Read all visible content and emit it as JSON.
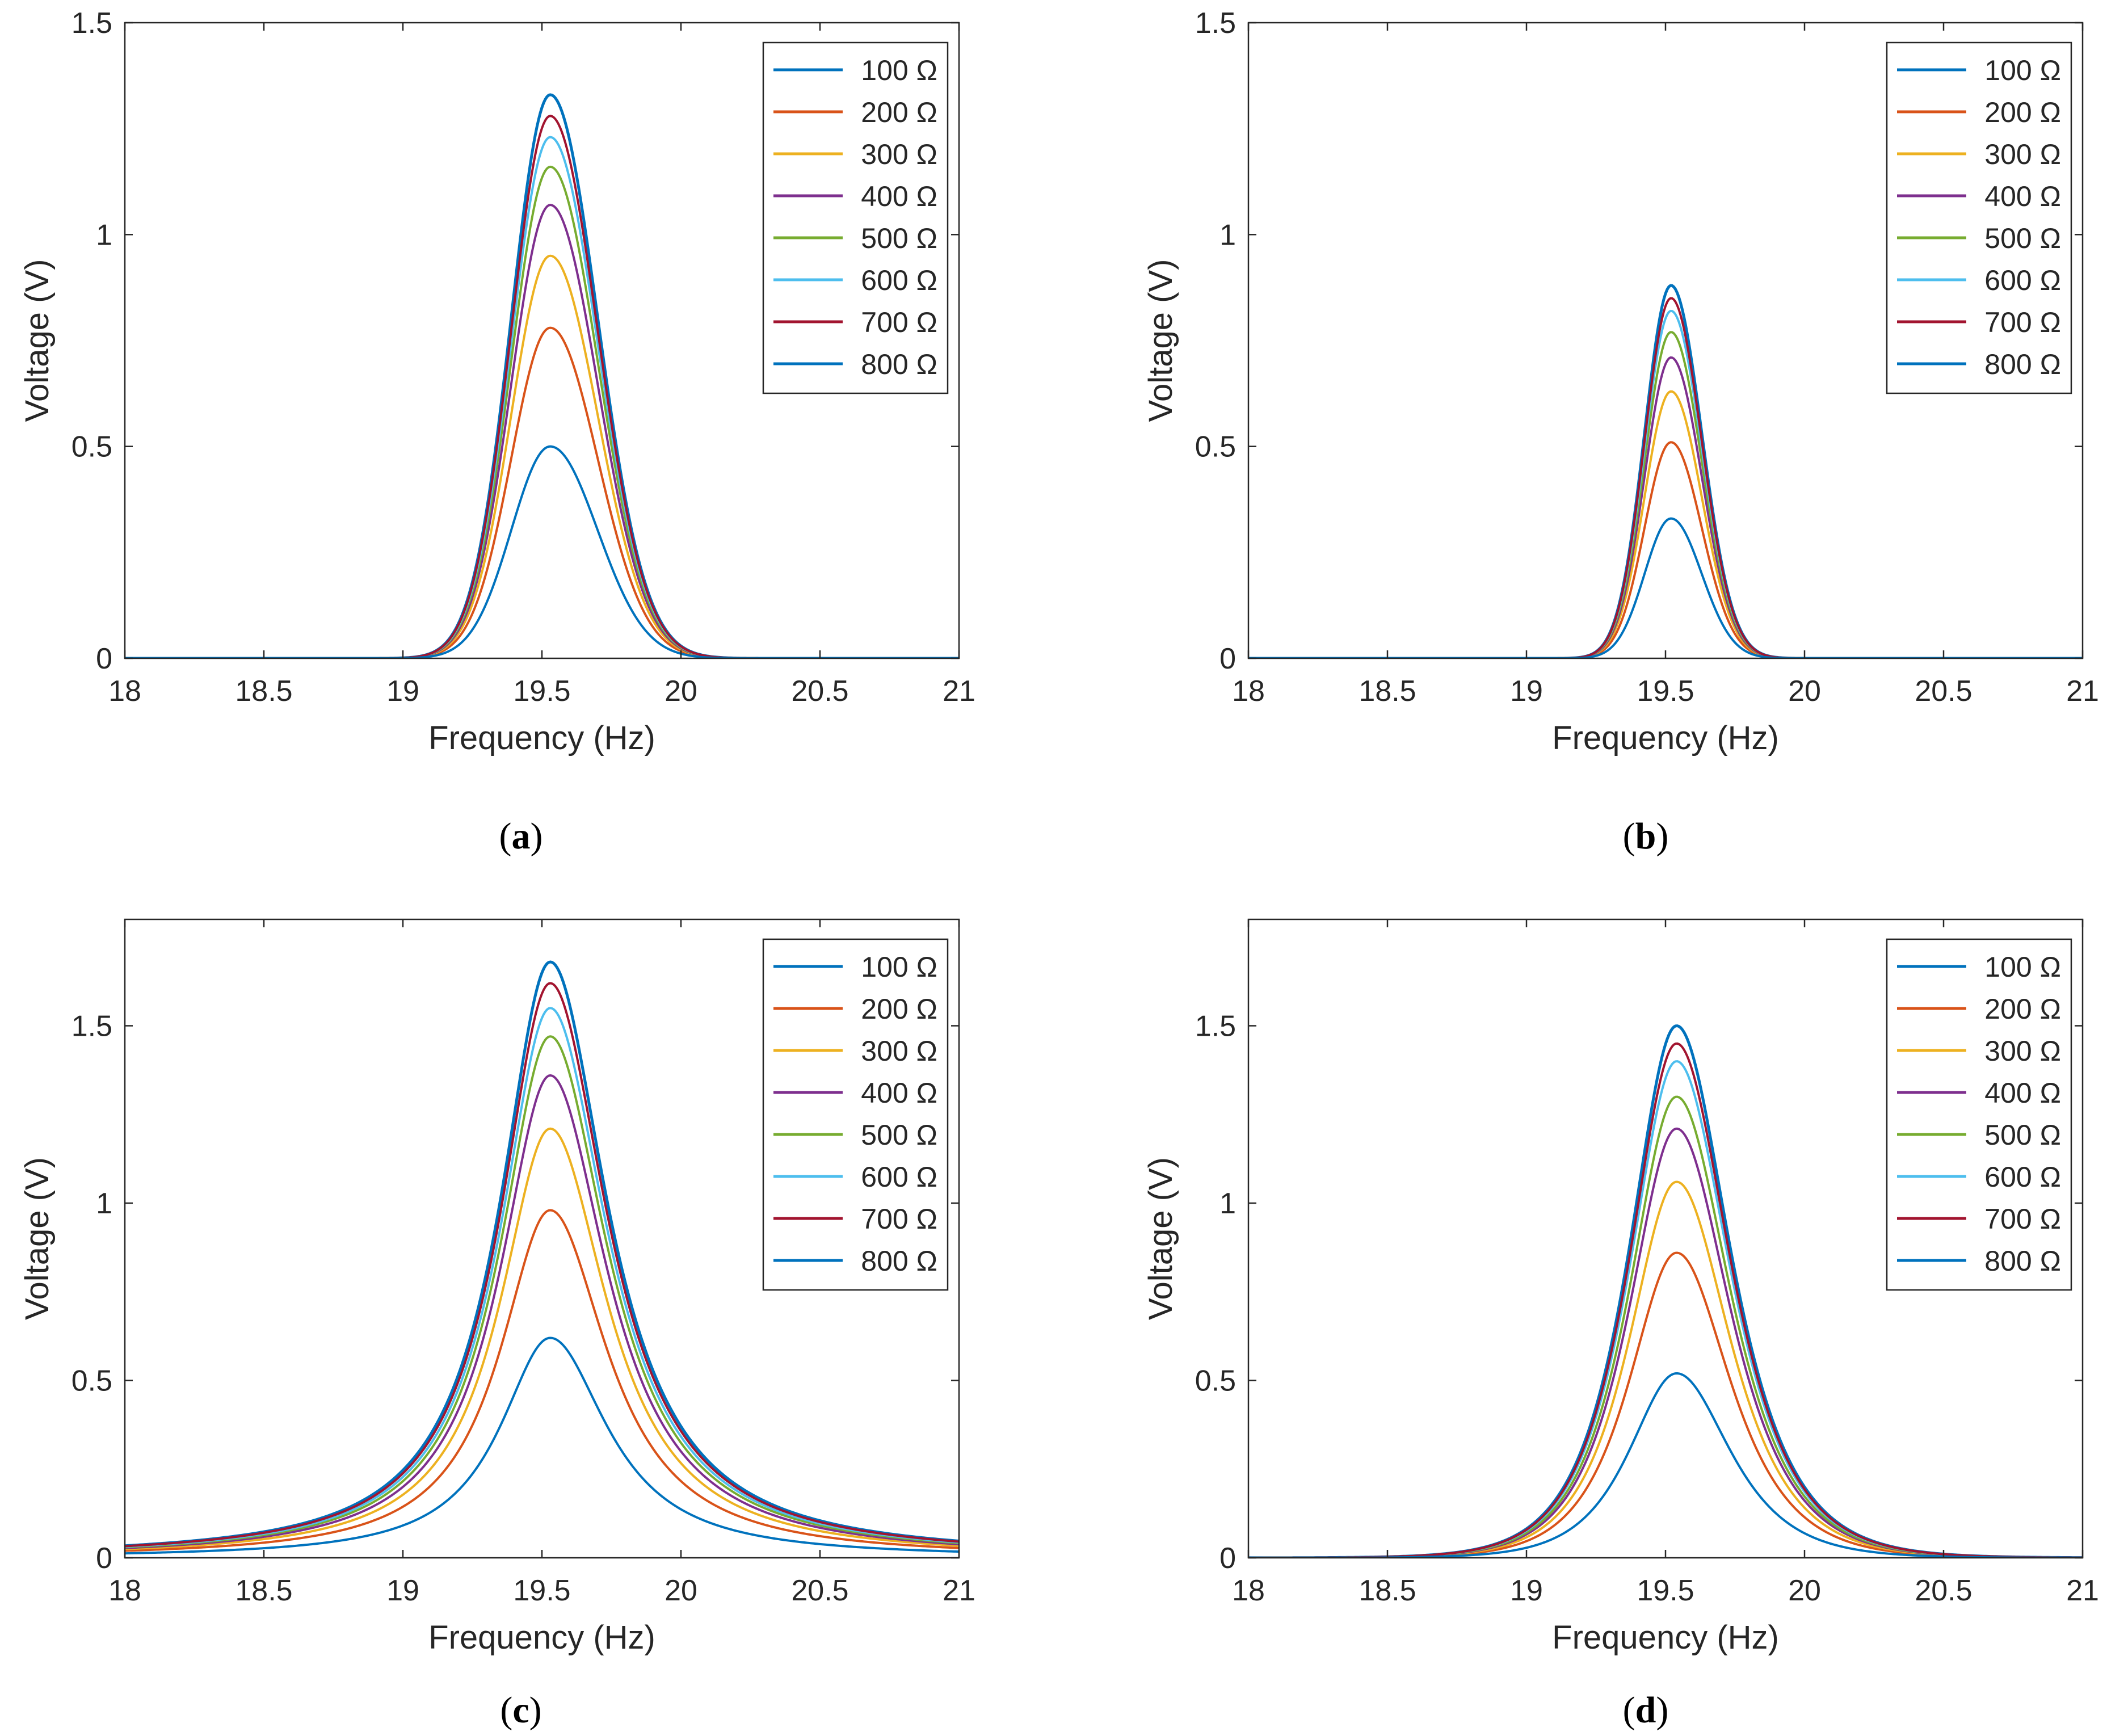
{
  "chart_data": [
    {
      "type": "line",
      "panel": "a",
      "caption_letter": "a",
      "xlabel": "Frequency (Hz)",
      "ylabel": "Voltage (V)",
      "xlim": [
        18,
        21
      ],
      "ylim": [
        0,
        1.5
      ],
      "xticks": [
        18,
        18.5,
        19,
        19.5,
        20,
        20.5,
        21
      ],
      "xtick_labels": [
        "18",
        "18.5",
        "19",
        "19.5",
        "20",
        "20.5",
        "21"
      ],
      "yticks": [
        0,
        0.5,
        1,
        1.5
      ],
      "ytick_labels": [
        "0",
        "0.5",
        "1",
        "1.5"
      ],
      "legend_position": "top-right",
      "peak_frequency": 19.53,
      "shape": "gaussian",
      "width_left": 0.14,
      "width_right": 0.17,
      "series": [
        {
          "name": "100 Ω",
          "color": "#0072BD",
          "peak": 1.33
        },
        {
          "name": "200 Ω",
          "color": "#D95319",
          "peak": 0.78
        },
        {
          "name": "300 Ω",
          "color": "#EDB120",
          "peak": 0.95
        },
        {
          "name": "400 Ω",
          "color": "#7E2F8E",
          "peak": 1.07
        },
        {
          "name": "500 Ω",
          "color": "#77AC30",
          "peak": 1.16
        },
        {
          "name": "600 Ω",
          "color": "#4DBEEE",
          "peak": 1.23
        },
        {
          "name": "700 Ω",
          "color": "#A2142F",
          "peak": 1.28
        },
        {
          "name": "800 Ω",
          "color": "#0072BD",
          "peak": 0.5
        }
      ]
    },
    {
      "type": "line",
      "panel": "b",
      "caption_letter": "b",
      "xlabel": "Frequency (Hz)",
      "ylabel": "Voltage (V)",
      "xlim": [
        18,
        21
      ],
      "ylim": [
        0,
        1.5
      ],
      "xticks": [
        18,
        18.5,
        19,
        19.5,
        20,
        20.5,
        21
      ],
      "xtick_labels": [
        "18",
        "18.5",
        "19",
        "19.5",
        "20",
        "20.5",
        "21"
      ],
      "yticks": [
        0,
        0.5,
        1,
        1.5
      ],
      "ytick_labels": [
        "0",
        "0.5",
        "1",
        "1.5"
      ],
      "legend_position": "top-right",
      "peak_frequency": 19.52,
      "shape": "gaussian",
      "width_left": 0.095,
      "width_right": 0.11,
      "series": [
        {
          "name": "100 Ω",
          "color": "#0072BD",
          "peak": 0.88
        },
        {
          "name": "200 Ω",
          "color": "#D95319",
          "peak": 0.51
        },
        {
          "name": "300 Ω",
          "color": "#EDB120",
          "peak": 0.63
        },
        {
          "name": "400 Ω",
          "color": "#7E2F8E",
          "peak": 0.71
        },
        {
          "name": "500 Ω",
          "color": "#77AC30",
          "peak": 0.77
        },
        {
          "name": "600 Ω",
          "color": "#4DBEEE",
          "peak": 0.82
        },
        {
          "name": "700 Ω",
          "color": "#A2142F",
          "peak": 0.85
        },
        {
          "name": "800 Ω",
          "color": "#0072BD",
          "peak": 0.33
        }
      ]
    },
    {
      "type": "line",
      "panel": "c",
      "caption_letter": "c",
      "xlabel": "Frequency (Hz)",
      "ylabel": "Voltage (V)",
      "xlim": [
        18,
        21
      ],
      "ylim": [
        0,
        1.8
      ],
      "xticks": [
        18,
        18.5,
        19,
        19.5,
        20,
        20.5,
        21
      ],
      "xtick_labels": [
        "18",
        "18.5",
        "19",
        "19.5",
        "20",
        "20.5",
        "21"
      ],
      "yticks": [
        0,
        0.5,
        1,
        1.5
      ],
      "ytick_labels": [
        "0",
        "0.5",
        "1",
        "1.5"
      ],
      "legend_position": "top-right",
      "peak_frequency": 19.53,
      "shape": "lorentzian",
      "width_left": 0.22,
      "width_right": 0.25,
      "series": [
        {
          "name": "100 Ω",
          "color": "#0072BD",
          "peak": 1.68
        },
        {
          "name": "200 Ω",
          "color": "#D95319",
          "peak": 0.98
        },
        {
          "name": "300 Ω",
          "color": "#EDB120",
          "peak": 1.21
        },
        {
          "name": "400 Ω",
          "color": "#7E2F8E",
          "peak": 1.36
        },
        {
          "name": "500 Ω",
          "color": "#77AC30",
          "peak": 1.47
        },
        {
          "name": "600 Ω",
          "color": "#4DBEEE",
          "peak": 1.55
        },
        {
          "name": "700 Ω",
          "color": "#A2142F",
          "peak": 1.62
        },
        {
          "name": "800 Ω",
          "color": "#0072BD",
          "peak": 0.62
        }
      ]
    },
    {
      "type": "line",
      "panel": "d",
      "caption_letter": "d",
      "xlabel": "Frequency (Hz)",
      "ylabel": "Voltage (V)",
      "xlim": [
        18,
        21
      ],
      "ylim": [
        0,
        1.8
      ],
      "xticks": [
        18,
        18.5,
        19,
        19.5,
        20,
        20.5,
        21
      ],
      "xtick_labels": [
        "18",
        "18.5",
        "19",
        "19.5",
        "20",
        "20.5",
        "21"
      ],
      "yticks": [
        0,
        0.5,
        1,
        1.5
      ],
      "ytick_labels": [
        "0",
        "0.5",
        "1",
        "1.5"
      ],
      "legend_position": "top-right",
      "peak_frequency": 19.54,
      "shape": "sech",
      "width_left": 0.15,
      "width_right": 0.17,
      "series": [
        {
          "name": "100 Ω",
          "color": "#0072BD",
          "peak": 1.5
        },
        {
          "name": "200 Ω",
          "color": "#D95319",
          "peak": 0.86
        },
        {
          "name": "300 Ω",
          "color": "#EDB120",
          "peak": 1.06
        },
        {
          "name": "400 Ω",
          "color": "#7E2F8E",
          "peak": 1.21
        },
        {
          "name": "500 Ω",
          "color": "#77AC30",
          "peak": 1.3
        },
        {
          "name": "600 Ω",
          "color": "#4DBEEE",
          "peak": 1.4
        },
        {
          "name": "700 Ω",
          "color": "#A2142F",
          "peak": 1.45
        },
        {
          "name": "800 Ω",
          "color": "#0072BD",
          "peak": 0.52
        }
      ]
    }
  ]
}
